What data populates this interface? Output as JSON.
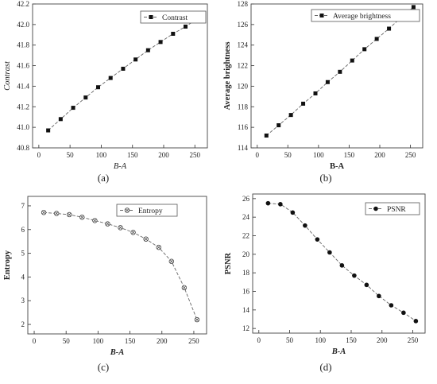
{
  "panel_labels": [
    "(a)",
    "(b)",
    "(c)",
    "(d)"
  ],
  "chart_data": [
    {
      "type": "line",
      "panel": "(a)",
      "xlabel": "B-A",
      "ylabel": "Contrast",
      "xlim": [
        -10,
        270
      ],
      "ylim": [
        40.8,
        42.2
      ],
      "xticks": [
        0,
        50,
        100,
        150,
        200,
        250
      ],
      "yticks": [
        40.8,
        41.0,
        41.2,
        41.4,
        41.6,
        41.8,
        42.0,
        42.2
      ],
      "ytick_decimals": 1,
      "marker": "square",
      "line_style": "dashed",
      "legend_position": "top-right",
      "series": [
        {
          "name": "Contrast",
          "x": [
            15,
            35,
            55,
            75,
            95,
            115,
            135,
            155,
            175,
            195,
            215,
            235,
            255
          ],
          "y": [
            40.97,
            41.08,
            41.19,
            41.29,
            41.39,
            41.48,
            41.57,
            41.66,
            41.75,
            41.83,
            41.91,
            41.98,
            42.06
          ]
        }
      ]
    },
    {
      "type": "line",
      "panel": "(b)",
      "xlabel": "B-A",
      "ylabel": "Average brightness",
      "xlim": [
        -10,
        270
      ],
      "ylim": [
        114,
        128
      ],
      "xticks": [
        0,
        50,
        100,
        150,
        200,
        250
      ],
      "yticks": [
        114,
        116,
        118,
        120,
        122,
        124,
        126,
        128
      ],
      "ytick_decimals": 0,
      "marker": "square",
      "line_style": "dashed",
      "legend_position": "top-right",
      "series": [
        {
          "name": "Average brightness",
          "x": [
            15,
            35,
            55,
            75,
            95,
            115,
            135,
            155,
            175,
            195,
            215,
            235,
            255
          ],
          "y": [
            115.2,
            116.2,
            117.2,
            118.3,
            119.3,
            120.4,
            121.4,
            122.5,
            123.6,
            124.6,
            125.6,
            126.7,
            127.7
          ]
        }
      ]
    },
    {
      "type": "line",
      "panel": "(c)",
      "xlabel": "B-A",
      "ylabel": "Entropy",
      "xlim": [
        -10,
        270
      ],
      "ylim": [
        1.6,
        7.4
      ],
      "xticks": [
        0,
        50,
        100,
        150,
        200,
        250
      ],
      "yticks": [
        2,
        3,
        4,
        5,
        6,
        7
      ],
      "ytick_decimals": 0,
      "marker": "circle-x",
      "line_style": "dashed",
      "legend_position": "top-right",
      "series": [
        {
          "name": "Entropy",
          "x": [
            15,
            35,
            55,
            75,
            95,
            115,
            135,
            155,
            175,
            195,
            215,
            235,
            255
          ],
          "y": [
            6.72,
            6.68,
            6.63,
            6.52,
            6.38,
            6.24,
            6.08,
            5.88,
            5.6,
            5.25,
            4.66,
            3.55,
            2.2
          ]
        }
      ]
    },
    {
      "type": "line",
      "panel": "(d)",
      "xlabel": "B-A",
      "ylabel": "PSNR",
      "xlim": [
        -10,
        270
      ],
      "ylim": [
        11.5,
        26.5
      ],
      "xticks": [
        0,
        50,
        100,
        150,
        200,
        250
      ],
      "yticks": [
        12,
        14,
        16,
        18,
        20,
        22,
        24,
        26
      ],
      "ytick_decimals": 0,
      "marker": "dot",
      "line_style": "dashed",
      "legend_position": "top-right",
      "series": [
        {
          "name": "PSNR",
          "x": [
            15,
            35,
            55,
            75,
            95,
            115,
            135,
            155,
            175,
            195,
            215,
            235,
            255
          ],
          "y": [
            25.5,
            25.4,
            24.5,
            23.1,
            21.6,
            20.2,
            18.8,
            17.7,
            16.7,
            15.5,
            14.5,
            13.7,
            12.8
          ]
        }
      ]
    }
  ]
}
